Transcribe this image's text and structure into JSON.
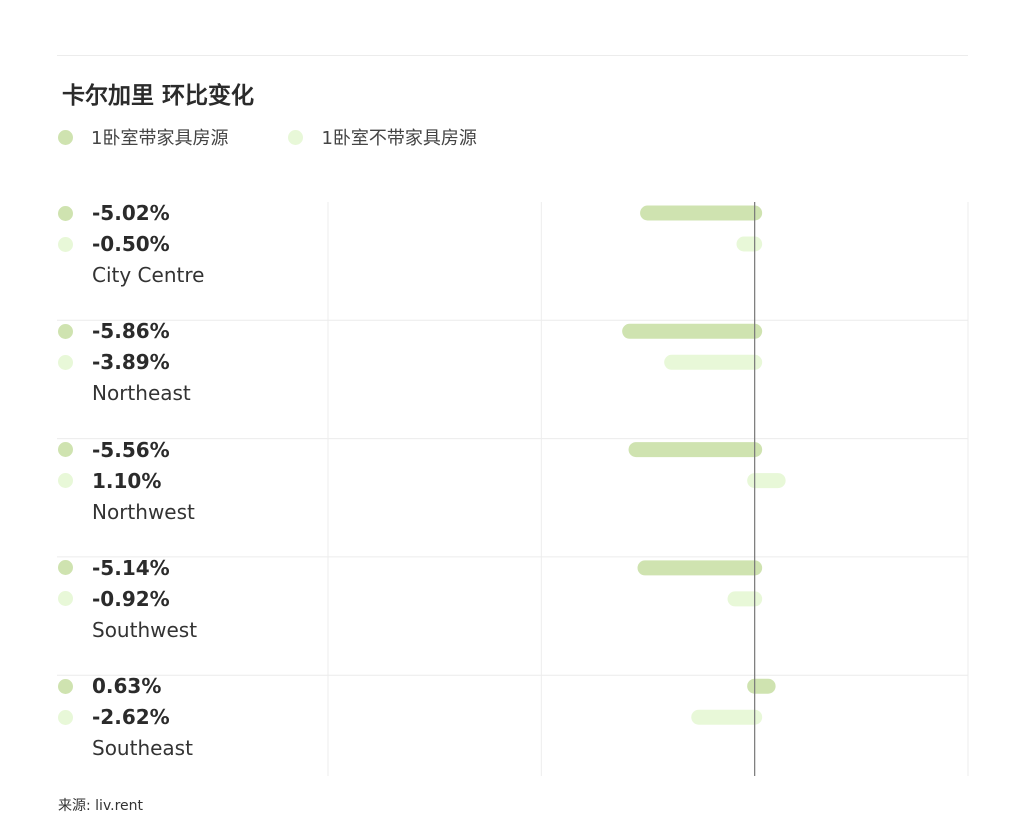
{
  "title": "卡尔加里 环比变化",
  "legend": [
    {
      "label": "1卧室带家具房源",
      "color": "#cfe3b0"
    },
    {
      "label": "1卧室不带家具房源",
      "color": "#e8f8d8"
    }
  ],
  "source": "来源: liv.rent",
  "chart_data": {
    "type": "bar",
    "orientation": "horizontal",
    "title": "卡尔加里 环比变化",
    "categories": [
      "City Centre",
      "Northeast",
      "Northwest",
      "Southwest",
      "Southeast"
    ],
    "series": [
      {
        "name": "1卧室带家具房源",
        "color": "#cfe3b0",
        "values": [
          -5.02,
          -5.86,
          -5.56,
          -5.14,
          0.63
        ],
        "labels": [
          "-5.02%",
          "-5.86%",
          "-5.56%",
          "-5.14%",
          "0.63%"
        ]
      },
      {
        "name": "1卧室不带家具房源",
        "color": "#e8f8d8",
        "values": [
          -0.5,
          -3.89,
          1.1,
          -0.92,
          -2.62
        ],
        "labels": [
          "-0.50%",
          "-3.89%",
          "1.10%",
          "-0.92%",
          "-2.62%"
        ]
      }
    ],
    "xlim": [
      -20,
      10
    ],
    "zero_line": true,
    "grid": true,
    "legend": "top-left"
  }
}
